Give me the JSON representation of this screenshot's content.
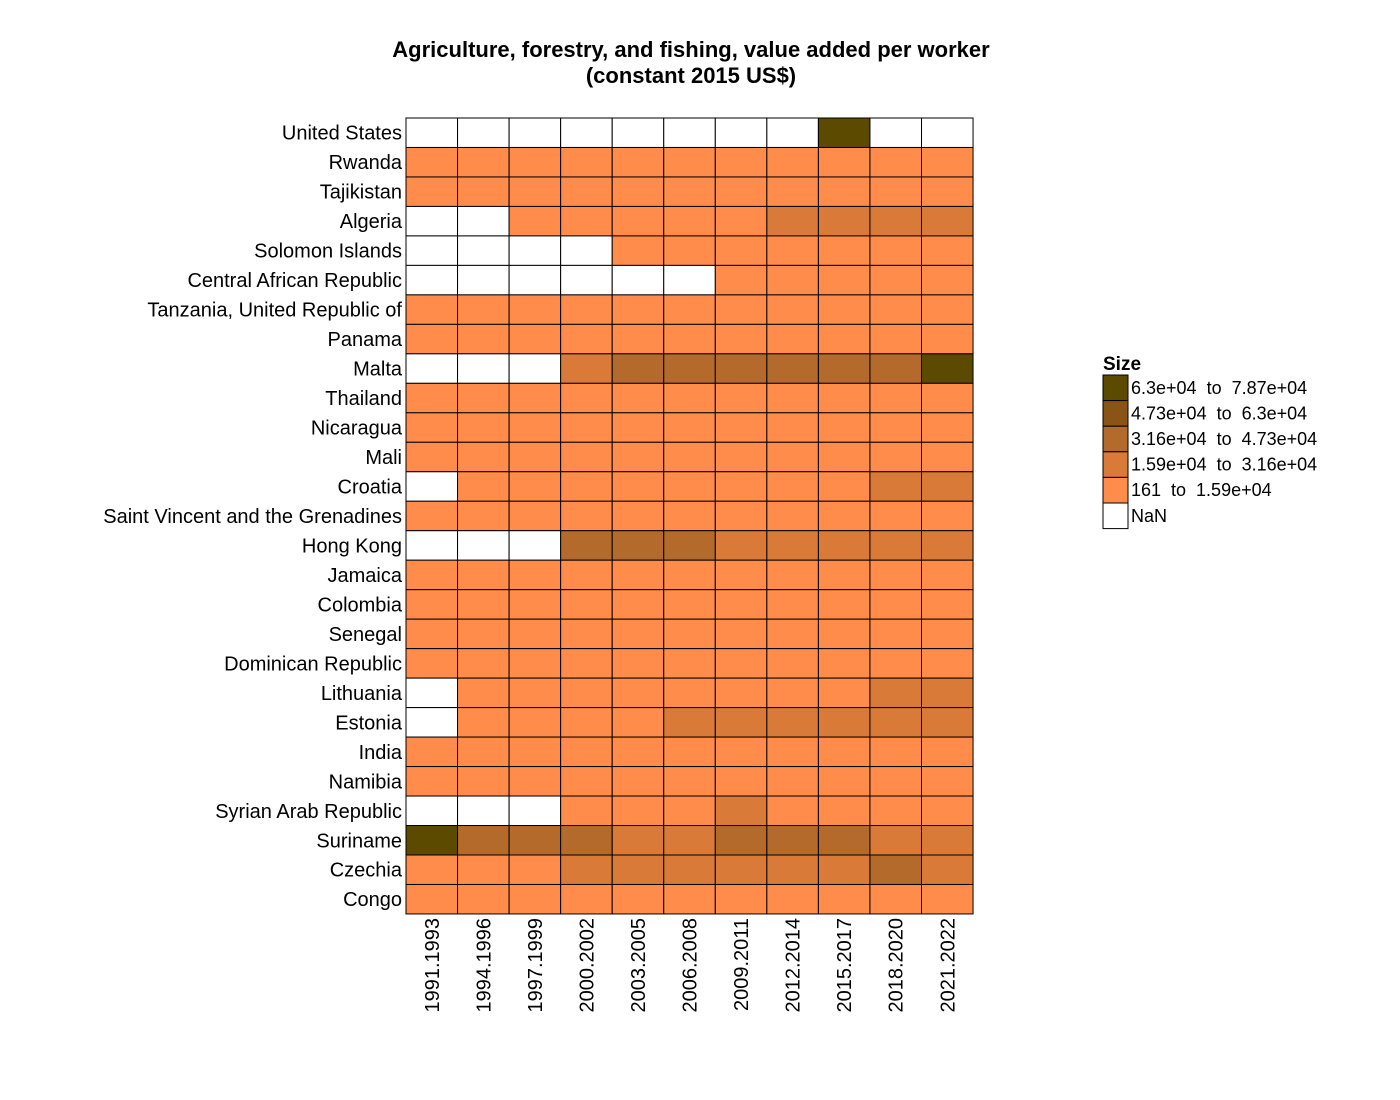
{
  "chart_data": {
    "type": "heatmap",
    "title": [
      "Agriculture, forestry, and fishing, value added per worker",
      "(constant 2015 US$)"
    ],
    "columns": [
      "1991.1993",
      "1994.1996",
      "1997.1999",
      "2000.2002",
      "2003.2005",
      "2006.2008",
      "2009.2011",
      "2012.2014",
      "2015.2017",
      "2018.2020",
      "2021.2022"
    ],
    "rows": [
      "United States",
      "Rwanda",
      "Tajikistan",
      "Algeria",
      "Solomon Islands",
      "Central African Republic",
      "Tanzania, United Republic of",
      "Panama",
      "Malta",
      "Thailand",
      "Nicaragua",
      "Mali",
      "Croatia",
      "Saint Vincent and the Grenadines",
      "Hong Kong",
      "Jamaica",
      "Colombia",
      "Senegal",
      "Dominican Republic",
      "Lithuania",
      "Estonia",
      "India",
      "Namibia",
      "Syrian Arab Republic",
      "Suriname",
      "Czechia",
      "Congo"
    ],
    "legend": {
      "title": "Size",
      "bins": [
        {
          "label": "6.3e+04  to  7.87e+04",
          "color": "#5c4a00"
        },
        {
          "label": "4.73e+04  to  6.3e+04",
          "color": "#8a5417"
        },
        {
          "label": "3.16e+04  to  4.73e+04",
          "color": "#b46a2a"
        },
        {
          "label": "1.59e+04  to  3.16e+04",
          "color": "#d97a38"
        },
        {
          "label": "161  to  1.59e+04",
          "color": "#ff8c4a"
        },
        {
          "label": "NaN",
          "color": "#ffffff"
        }
      ]
    },
    "bin_matrix": [
      [
        -1,
        -1,
        -1,
        -1,
        -1,
        -1,
        -1,
        -1,
        0,
        -1,
        -1
      ],
      [
        4,
        4,
        4,
        4,
        4,
        4,
        4,
        4,
        4,
        4,
        4
      ],
      [
        4,
        4,
        4,
        4,
        4,
        4,
        4,
        4,
        4,
        4,
        4
      ],
      [
        -1,
        -1,
        4,
        4,
        4,
        4,
        4,
        3,
        3,
        3,
        3
      ],
      [
        -1,
        -1,
        -1,
        -1,
        4,
        4,
        4,
        4,
        4,
        4,
        4
      ],
      [
        -1,
        -1,
        -1,
        -1,
        -1,
        -1,
        4,
        4,
        4,
        4,
        4
      ],
      [
        4,
        4,
        4,
        4,
        4,
        4,
        4,
        4,
        4,
        4,
        4
      ],
      [
        4,
        4,
        4,
        4,
        4,
        4,
        4,
        4,
        4,
        4,
        4
      ],
      [
        -1,
        -1,
        -1,
        3,
        2,
        2,
        2,
        2,
        2,
        2,
        0
      ],
      [
        4,
        4,
        4,
        4,
        4,
        4,
        4,
        4,
        4,
        4,
        4
      ],
      [
        4,
        4,
        4,
        4,
        4,
        4,
        4,
        4,
        4,
        4,
        4
      ],
      [
        4,
        4,
        4,
        4,
        4,
        4,
        4,
        4,
        4,
        4,
        4
      ],
      [
        -1,
        4,
        4,
        4,
        4,
        4,
        4,
        4,
        4,
        3,
        3
      ],
      [
        4,
        4,
        4,
        4,
        4,
        4,
        4,
        4,
        4,
        4,
        4
      ],
      [
        -1,
        -1,
        -1,
        2,
        2,
        2,
        3,
        3,
        3,
        3,
        3
      ],
      [
        4,
        4,
        4,
        4,
        4,
        4,
        4,
        4,
        4,
        4,
        4
      ],
      [
        4,
        4,
        4,
        4,
        4,
        4,
        4,
        4,
        4,
        4,
        4
      ],
      [
        4,
        4,
        4,
        4,
        4,
        4,
        4,
        4,
        4,
        4,
        4
      ],
      [
        4,
        4,
        4,
        4,
        4,
        4,
        4,
        4,
        4,
        4,
        4
      ],
      [
        -1,
        4,
        4,
        4,
        4,
        4,
        4,
        4,
        4,
        3,
        3
      ],
      [
        -1,
        4,
        4,
        4,
        4,
        3,
        3,
        3,
        3,
        3,
        3
      ],
      [
        4,
        4,
        4,
        4,
        4,
        4,
        4,
        4,
        4,
        4,
        4
      ],
      [
        4,
        4,
        4,
        4,
        4,
        4,
        4,
        4,
        4,
        4,
        4
      ],
      [
        -1,
        -1,
        -1,
        4,
        4,
        4,
        3,
        4,
        4,
        4,
        4
      ],
      [
        0,
        2,
        2,
        2,
        3,
        3,
        2,
        2,
        2,
        3,
        3
      ],
      [
        4,
        4,
        4,
        3,
        3,
        3,
        3,
        3,
        3,
        2,
        3
      ],
      [
        4,
        4,
        4,
        4,
        4,
        4,
        4,
        4,
        4,
        4,
        4
      ]
    ]
  }
}
